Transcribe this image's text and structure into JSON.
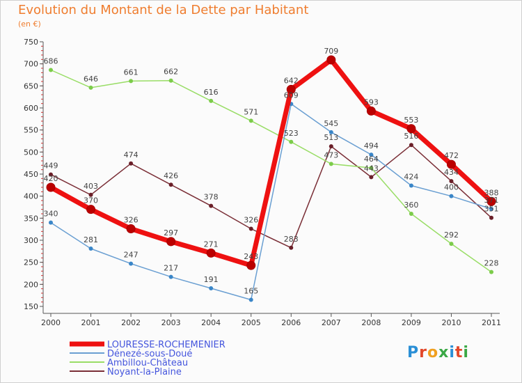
{
  "title": "Evolution du Montant de la Dette par Habitant",
  "unit": "(en €)",
  "logo": {
    "text": "Proxiti",
    "letters": [
      {
        "c": "P",
        "color": "#2a8fd6"
      },
      {
        "c": "r",
        "color": "#e2482a"
      },
      {
        "c": "o",
        "color": "#f0a020"
      },
      {
        "c": "x",
        "color": "#3aa845"
      },
      {
        "c": "i",
        "color": "#2a8fd6"
      },
      {
        "c": "t",
        "color": "#e2482a"
      },
      {
        "c": "i",
        "color": "#3aa845"
      }
    ]
  },
  "chart_data": {
    "type": "line",
    "x": [
      "2000",
      "2001",
      "2002",
      "2003",
      "2004",
      "2005",
      "2006",
      "2007",
      "2008",
      "2009",
      "2010",
      "2011"
    ],
    "ylim": [
      150,
      750
    ],
    "yticks": [
      150,
      200,
      250,
      300,
      350,
      400,
      450,
      500,
      550,
      600,
      650,
      700,
      750
    ],
    "grid": false,
    "legend_position": "bottom-left",
    "series": [
      {
        "name": "LOURESSE-ROCHEMENIER",
        "color": "#ee1111",
        "marker": "#bb0000",
        "values": [
          420,
          370,
          326,
          297,
          271,
          243,
          642,
          709,
          593,
          553,
          472,
          388
        ],
        "labels": [
          "420",
          "370",
          "326",
          "297",
          "271",
          "243",
          "642",
          "709",
          "593",
          "553",
          "472",
          "388"
        ]
      },
      {
        "name": "Dénezé-sous-Doué",
        "color": "#6a9fd2",
        "marker": "#3a86c8",
        "values": [
          340,
          281,
          247,
          217,
          191,
          165,
          609,
          545,
          494,
          424,
          400,
          371
        ],
        "labels": [
          "340",
          "281",
          "247",
          "217",
          "191",
          "165",
          "609",
          "545",
          "494",
          "424",
          "400",
          "371"
        ]
      },
      {
        "name": "Ambillou-Château",
        "color": "#99dd66",
        "marker": "#7ccc4a",
        "values": [
          686,
          646,
          661,
          662,
          616,
          571,
          523,
          473,
          464,
          360,
          292,
          228
        ],
        "labels": [
          "686",
          "646",
          "661",
          "662",
          "616",
          "571",
          "523",
          "473",
          "464",
          "360",
          "292",
          "228"
        ]
      },
      {
        "name": "Noyant-la-Plaine",
        "color": "#7a2e36",
        "marker": "#6a1f28",
        "values": [
          449,
          403,
          474,
          426,
          378,
          326,
          283,
          513,
          443,
          516,
          434,
          351
        ],
        "labels": [
          "449",
          "403",
          "474",
          "426",
          "378",
          "326",
          "283",
          "513",
          "443",
          "516",
          "434",
          "351"
        ]
      }
    ]
  }
}
